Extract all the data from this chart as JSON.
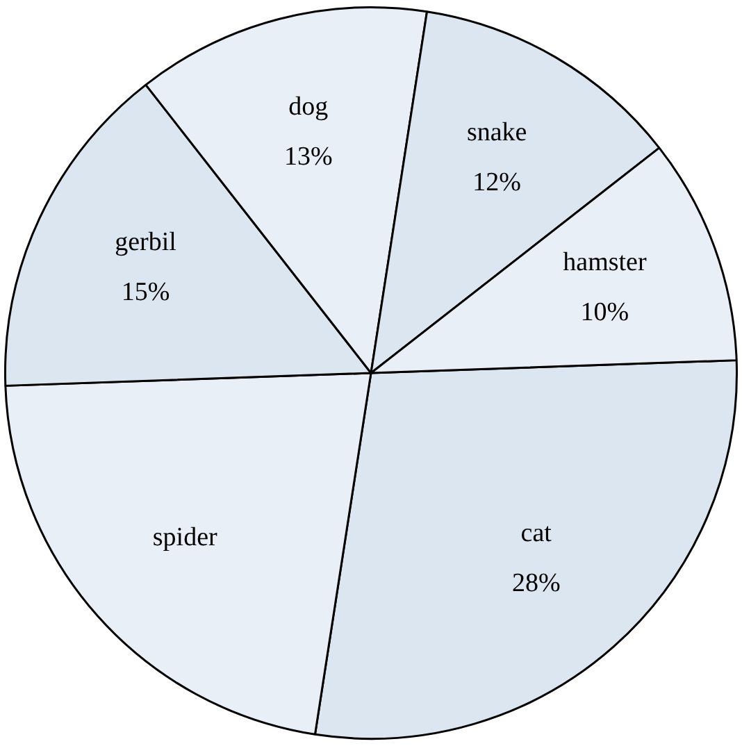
{
  "chart_data": {
    "type": "pie",
    "categories": [
      "cat",
      "spider",
      "gerbil",
      "dog",
      "snake",
      "hamster"
    ],
    "values": [
      28,
      22,
      15,
      13,
      12,
      10
    ],
    "value_labels": [
      "28%",
      null,
      "15%",
      "13%",
      "12%",
      "10%"
    ],
    "colors": [
      "#dce6f0",
      "#e8eff6",
      "#dce6f0",
      "#e8eff6",
      "#dce6f0",
      "#e8eff6"
    ],
    "legend": false
  }
}
